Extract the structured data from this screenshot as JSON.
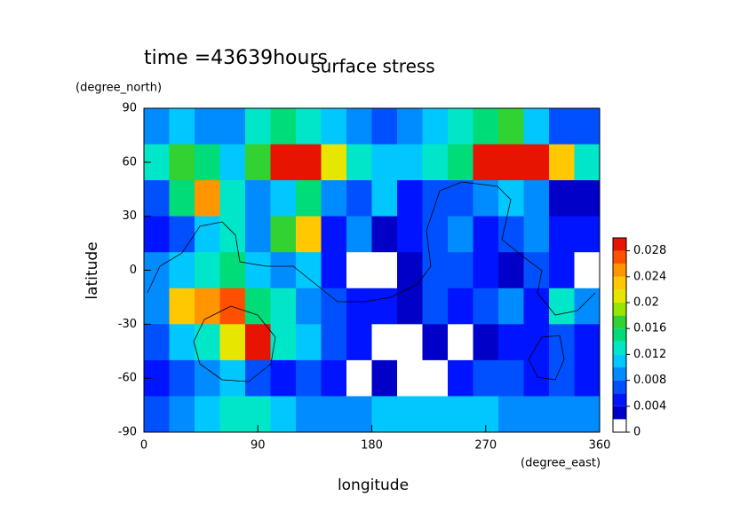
{
  "chart_data": {
    "type": "contour",
    "title": "surface stress",
    "subtitle": "time =43639hours",
    "xlabel": "longitude",
    "xunit": "(degree_east)",
    "ylabel": "latitude",
    "yunit": "(degree_north)",
    "xlim": [
      0,
      360
    ],
    "xticks": [
      0,
      90,
      180,
      270,
      360
    ],
    "ylim": [
      -90,
      90
    ],
    "yticks": [
      -90,
      -60,
      -30,
      0,
      30,
      60,
      90
    ],
    "lon": [
      10,
      30,
      50,
      70,
      90,
      110,
      130,
      150,
      170,
      190,
      210,
      230,
      250,
      270,
      290,
      310,
      330,
      350
    ],
    "lat": [
      80,
      60,
      40,
      20,
      0,
      -20,
      -40,
      -60,
      -80
    ],
    "values": [
      [
        0.008,
        0.01,
        0.008,
        0.008,
        0.012,
        0.014,
        0.012,
        0.01,
        0.008,
        0.006,
        0.008,
        0.01,
        0.012,
        0.014,
        0.016,
        0.01,
        0.006,
        0.006
      ],
      [
        0.012,
        0.016,
        0.014,
        0.01,
        0.016,
        0.03,
        0.03,
        0.02,
        0.012,
        0.01,
        0.01,
        0.012,
        0.014,
        0.03,
        0.03,
        0.03,
        0.022,
        0.012
      ],
      [
        0.006,
        0.014,
        0.024,
        0.012,
        0.008,
        0.01,
        0.014,
        0.008,
        0.006,
        0.01,
        0.004,
        0.006,
        0.006,
        0.008,
        0.01,
        0.008,
        0.002,
        0.002
      ],
      [
        0.004,
        0.006,
        0.01,
        0.012,
        0.008,
        0.016,
        0.022,
        0.004,
        0.008,
        0.002,
        0.004,
        0.006,
        0.008,
        0.004,
        0.006,
        0.008,
        0.004,
        0.004
      ],
      [
        0.008,
        0.01,
        0.012,
        0.014,
        0.01,
        0.008,
        0.01,
        0.004,
        0,
        0,
        0.002,
        0.006,
        0.006,
        0.004,
        0.002,
        0.006,
        0.004,
        0
      ],
      [
        0.008,
        0.022,
        0.024,
        0.026,
        0.014,
        0.012,
        0.008,
        0.006,
        0.004,
        0.004,
        0.002,
        0.006,
        0.004,
        0.006,
        0.008,
        0.004,
        0.012,
        0.008
      ],
      [
        0.006,
        0.01,
        0.012,
        0.02,
        0.028,
        0.012,
        0.01,
        0.006,
        0.004,
        0,
        0,
        0.002,
        0,
        0.002,
        0.004,
        0.004,
        0.006,
        0.004
      ],
      [
        0.004,
        0.006,
        0.008,
        0.01,
        0.006,
        0.004,
        0.006,
        0.004,
        0,
        0.002,
        0,
        0,
        0.004,
        0.006,
        0.006,
        0.004,
        0.006,
        0.004
      ],
      [
        0.006,
        0.008,
        0.01,
        0.012,
        0.012,
        0.01,
        0.008,
        0.008,
        0.008,
        0.01,
        0.01,
        0.01,
        0.01,
        0.01,
        0.008,
        0.008,
        0.008,
        0.008
      ]
    ],
    "levels": [
      0,
      0.002,
      0.004,
      0.006,
      0.008,
      0.01,
      0.012,
      0.014,
      0.016,
      0.018,
      0.02,
      0.022,
      0.024,
      0.026,
      0.028
    ],
    "colors": [
      "#ffffff",
      "#0000c8",
      "#0014ff",
      "#0050ff",
      "#008cff",
      "#00c8ff",
      "#00e6c8",
      "#00dc78",
      "#32d232",
      "#96e600",
      "#e6e600",
      "#ffc800",
      "#ff9600",
      "#ff5000",
      "#e61400"
    ],
    "clim": [
      0,
      0.03
    ],
    "cticks": [
      0,
      0.004,
      0.008,
      0.012,
      0.016,
      0.02,
      0.024,
      0.028
    ]
  }
}
